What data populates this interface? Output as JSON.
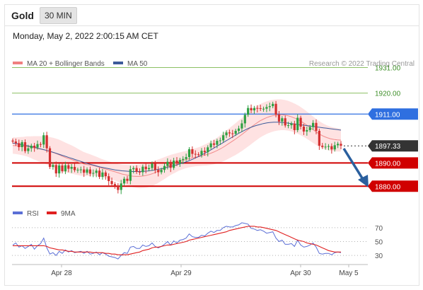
{
  "header": {
    "title": "Gold",
    "timeframe": "30 MIN"
  },
  "datetime": "Monday, May 2, 2022 2:00:15 AM CET",
  "legend": {
    "ma_bands": "MA 20 + Bollinger Bands",
    "ma50": "MA 50"
  },
  "copyright": "Research © 2022 Trading Central",
  "rsi_legend": {
    "rsi": "RSI",
    "ma": "9MA"
  },
  "colors": {
    "bullish": "#2ea043",
    "bearish": "#d32f2f",
    "ma50": "#3c5a9a",
    "resistance": "#8cc063",
    "pivot": "#2f6fe0",
    "support": "#d00000",
    "band": "#fdd8d8",
    "current": "#333333",
    "arrow": "#2a5f9e"
  },
  "chart_data": [
    {
      "type": "candlestick",
      "title": "Gold",
      "x_ticks": [
        "Apr 28",
        "Apr 29",
        "Apr 30",
        "May 5"
      ],
      "ylim": [
        1874,
        1936
      ],
      "levels": [
        {
          "label": "1931.00",
          "value": 1931.0,
          "role": "resistance"
        },
        {
          "label": "1920.00",
          "value": 1920.0,
          "role": "resistance"
        },
        {
          "label": "1911.00",
          "value": 1911.0,
          "role": "pivot"
        },
        {
          "label": "1897.33",
          "value": 1897.33,
          "role": "current"
        },
        {
          "label": "1890.00",
          "value": 1890.0,
          "role": "support"
        },
        {
          "label": "1880.00",
          "value": 1880.0,
          "role": "support"
        }
      ],
      "close": [
        1899.2,
        1898.5,
        1896.8,
        1898.9,
        1895.1,
        1896.3,
        1897.4,
        1896.6,
        1898.1,
        1897.9,
        1901.9,
        1896.3,
        1888.3,
        1889.1,
        1885.5,
        1888.9,
        1886.4,
        1889.0,
        1887.5,
        1888.3,
        1886.9,
        1887.1,
        1887.2,
        1885.8,
        1887.2,
        1885.4,
        1885.7,
        1886.7,
        1884.0,
        1885.9,
        1884.3,
        1882.2,
        1880.9,
        1880.1,
        1878.4,
        1881.2,
        1883.2,
        1882.3,
        1887.3,
        1887.8,
        1886.2,
        1886.0,
        1888.4,
        1887.3,
        1887.8,
        1889.7,
        1887.0,
        1886.0,
        1887.0,
        1888.7,
        1890.5,
        1887.9,
        1891.0,
        1889.8,
        1891.3,
        1891.7,
        1892.5,
        1895.9,
        1893.9,
        1893.7,
        1893.5,
        1895.2,
        1894.6,
        1896.7,
        1898.4,
        1897.8,
        1899.5,
        1899.7,
        1901.9,
        1903.1,
        1902.7,
        1902.5,
        1903.8,
        1904.8,
        1907.0,
        1910.7,
        1913.6,
        1912.6,
        1913.6,
        1913.5,
        1913.2,
        1913.3,
        1914.0,
        1914.4,
        1915.4,
        1910.8,
        1907.8,
        1909.2,
        1906.1,
        1906.2,
        1906.9,
        1904.1,
        1909.4,
        1905.6,
        1903.5,
        1904.1,
        1905.4,
        1907.2,
        1903.8,
        1897.4,
        1896.9,
        1897.0,
        1897.2,
        1895.8,
        1897.6,
        1898.2,
        1897.4
      ],
      "ma20": [
        1897.5,
        1897.4,
        1897.3,
        1897.2,
        1897.1,
        1896.8,
        1896.5,
        1896.2,
        1895.9,
        1895.6,
        1895.2,
        1894.7,
        1894.2,
        1893.6,
        1892.9,
        1892.3,
        1891.8,
        1891.3,
        1890.7,
        1890.1,
        1889.6,
        1889.3,
        1889.1,
        1888.8,
        1888.4,
        1887.9,
        1887.5,
        1887.1,
        1886.6,
        1886.2,
        1885.7,
        1885.2,
        1884.9,
        1884.6,
        1884.3,
        1884.2,
        1884.2,
        1884.4,
        1884.7,
        1885.1,
        1885.6,
        1886.3,
        1887.0,
        1887.8,
        1888.6,
        1889.3,
        1889.9,
        1890.5,
        1891.0,
        1891.4,
        1891.8,
        1892.2,
        1892.5,
        1892.8,
        1893.2,
        1893.6,
        1894.1,
        1894.7,
        1895.4,
        1896.2,
        1897.1,
        1898.1,
        1899.1,
        1900.1,
        1901.2,
        1902.3,
        1903.5,
        1904.7,
        1905.9,
        1907.0,
        1908.0,
        1908.8,
        1909.5,
        1910.0,
        1910.4,
        1910.6,
        1910.7,
        1910.6,
        1910.3,
        1909.8,
        1909.2,
        1908.5,
        1907.6,
        1906.6,
        1905.5,
        1904.4,
        1903.3,
        1902.3,
        1901.5,
        1900.9,
        1900.4,
        1900.1,
        1899.9,
        1899.8
      ],
      "ma50": [
        1898.5,
        1898.3,
        1898.0,
        1897.7,
        1897.4,
        1897.1,
        1896.8,
        1896.4,
        1896.0,
        1895.6,
        1895.2,
        1894.8,
        1894.3,
        1893.8,
        1893.3,
        1892.8,
        1892.3,
        1891.8,
        1891.3,
        1890.8,
        1890.3,
        1889.8,
        1889.4,
        1889.0,
        1888.6,
        1888.2,
        1887.9,
        1887.6,
        1887.3,
        1887.0,
        1886.8,
        1886.6,
        1886.5,
        1886.4,
        1886.3,
        1886.3,
        1886.3,
        1886.4,
        1886.5,
        1886.7,
        1886.9,
        1887.2,
        1887.5,
        1887.8,
        1888.2,
        1888.6,
        1889.0,
        1889.4,
        1889.9,
        1890.4,
        1891.0,
        1891.6,
        1892.3,
        1893.0,
        1893.8,
        1894.6,
        1895.5,
        1896.4,
        1897.3,
        1898.2,
        1899.1,
        1900.0,
        1900.9,
        1901.8,
        1902.7,
        1903.5,
        1904.3,
        1905.0,
        1905.6,
        1906.1,
        1906.5,
        1906.9,
        1907.2,
        1907.4,
        1907.5,
        1907.5,
        1907.4,
        1907.3,
        1907.1,
        1906.9,
        1906.7,
        1906.5,
        1906.3,
        1906.1,
        1905.9,
        1905.7,
        1905.5,
        1905.3,
        1905.1,
        1904.9,
        1904.7,
        1904.5,
        1904.3,
        1904.1
      ],
      "band_width": [
        3.5,
        3.6,
        3.8,
        4.0,
        4.3,
        4.6,
        5.0,
        5.3,
        5.6,
        5.9,
        6.1,
        6.3,
        6.4,
        6.5,
        6.5,
        6.4,
        6.2,
        6.0,
        5.8,
        5.5,
        5.2,
        4.9,
        4.6,
        4.3,
        4.1,
        3.9,
        3.8,
        3.7,
        3.7,
        3.8,
        3.9,
        4.1,
        4.3,
        4.5,
        4.7,
        4.9,
        5.1,
        5.2,
        5.3,
        5.3,
        5.2,
        5.1,
        4.9,
        4.7,
        4.5,
        4.3,
        4.1,
        3.9,
        3.8,
        3.7,
        3.7,
        3.8,
        3.9,
        4.1,
        4.4,
        4.7,
        5.0,
        5.3,
        5.6,
        5.9,
        6.2,
        6.4,
        6.6,
        6.8,
        7.0,
        7.1,
        7.2,
        7.3,
        7.3,
        7.3,
        7.2,
        7.1,
        7.0,
        6.9,
        6.8,
        6.7,
        6.6,
        6.5,
        6.4,
        6.3,
        6.2,
        6.1,
        6.0,
        5.9,
        5.8,
        5.7,
        5.6,
        5.5,
        5.4,
        5.3,
        5.2,
        5.1,
        5.0,
        4.9
      ]
    },
    {
      "type": "line",
      "title": "RSI",
      "ylim": [
        20,
        80
      ],
      "y_ticks": [
        70,
        50,
        30
      ],
      "series": [
        {
          "name": "RSI",
          "values": [
            45,
            48,
            42,
            44,
            40,
            43,
            46,
            39,
            44,
            47,
            55,
            41,
            32,
            34,
            30,
            36,
            33,
            38,
            35,
            37,
            34,
            35,
            36,
            33,
            36,
            32,
            33,
            35,
            31,
            34,
            32,
            29,
            28,
            27,
            25,
            30,
            34,
            33,
            42,
            43,
            40,
            40,
            45,
            43,
            44,
            48,
            43,
            41,
            43,
            46,
            50,
            45,
            51,
            48,
            52,
            53,
            55,
            61,
            57,
            56,
            56,
            59,
            58,
            62,
            65,
            63,
            66,
            66,
            70,
            72,
            71,
            71,
            73,
            74,
            77,
            76,
            75,
            69,
            68,
            66,
            67,
            65,
            62,
            63,
            64,
            55,
            50,
            52,
            46,
            46,
            47,
            43,
            52,
            45,
            42,
            43,
            45,
            48,
            42,
            33,
            32,
            33,
            33,
            31,
            34,
            35,
            34
          ]
        },
        {
          "name": "9MA",
          "values": [
            44,
            44,
            44,
            44,
            44,
            44,
            44,
            44,
            44,
            44,
            44,
            43,
            41,
            40,
            39,
            38,
            38,
            37,
            36,
            36,
            35,
            35,
            35,
            35,
            35,
            35,
            34,
            34,
            34,
            34,
            33,
            33,
            32,
            32,
            31,
            31,
            31,
            31,
            32,
            33,
            34,
            35,
            37,
            38,
            39,
            41,
            42,
            42,
            43,
            44,
            45,
            45,
            46,
            47,
            48,
            49,
            50,
            52,
            53,
            54,
            55,
            56,
            57,
            58,
            59,
            60,
            61,
            62,
            63,
            64,
            66,
            67,
            68,
            69,
            70,
            71,
            72,
            72,
            72,
            71,
            71,
            70,
            69,
            68,
            67,
            66,
            64,
            62,
            60,
            58,
            56,
            54,
            52,
            51,
            50,
            48,
            47,
            46,
            45,
            43,
            41,
            39,
            37,
            36,
            35,
            35,
            35
          ]
        }
      ]
    }
  ]
}
